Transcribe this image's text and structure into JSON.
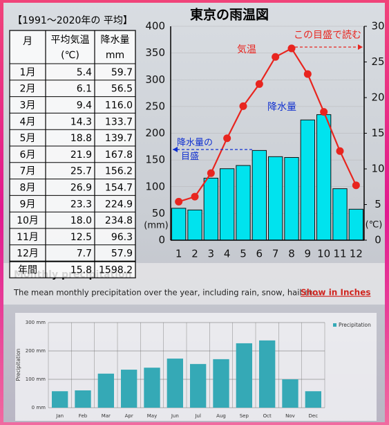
{
  "table": {
    "title": "【1991～2020年の 平均】",
    "header": [
      [
        "月"
      ],
      [
        "平均気温",
        "(℃)"
      ],
      [
        "降水量",
        "mm"
      ]
    ],
    "rows": [
      [
        "1月",
        "5.4",
        "59.7"
      ],
      [
        "2月",
        "6.1",
        "56.5"
      ],
      [
        "3月",
        "9.4",
        "116.0"
      ],
      [
        "4月",
        "14.3",
        "133.7"
      ],
      [
        "5月",
        "18.8",
        "139.7"
      ],
      [
        "6月",
        "21.9",
        "167.8"
      ],
      [
        "7月",
        "25.7",
        "156.2"
      ],
      [
        "8月",
        "26.9",
        "154.7"
      ],
      [
        "9月",
        "23.3",
        "224.9"
      ],
      [
        "10月",
        "18.0",
        "234.8"
      ],
      [
        "11月",
        "12.5",
        "96.3"
      ],
      [
        "12月",
        "7.7",
        "57.9"
      ],
      [
        "年間",
        "15.8",
        "1598.2"
      ]
    ]
  },
  "section": {
    "heading": "Monthly precipitation",
    "description": "The mean monthly precipitation over the year, including rain, snow, hail etc.",
    "link": "Show in Inches"
  },
  "chart_data": [
    {
      "type": "combo",
      "title": "東京の雨温図",
      "categories": [
        "1",
        "2",
        "3",
        "4",
        "5",
        "6",
        "7",
        "8",
        "9",
        "10",
        "11",
        "12"
      ],
      "series": [
        {
          "name": "降水量",
          "type": "bar",
          "color": "#00e3ee",
          "values": [
            59.7,
            56.5,
            116.0,
            133.7,
            139.7,
            167.8,
            156.2,
            154.7,
            224.9,
            234.8,
            96.3,
            57.9
          ]
        },
        {
          "name": "気温",
          "type": "line",
          "axis": "y2",
          "color": "#e8251f",
          "values": [
            5.4,
            6.1,
            9.4,
            14.3,
            18.8,
            21.9,
            25.7,
            26.9,
            23.3,
            18.0,
            12.5,
            7.7
          ]
        }
      ],
      "ylim": [
        0,
        400
      ],
      "yticks": [
        0,
        50,
        100,
        150,
        200,
        250,
        300,
        350,
        400
      ],
      "y2lim": [
        0,
        30
      ],
      "y2ticks": [
        0,
        5,
        10,
        15,
        20,
        25,
        30
      ],
      "y_unit": "(mm)",
      "y2_unit": "(℃)",
      "annotations": [
        "降水量の目盛",
        "この目盛で読む"
      ],
      "grid": true
    },
    {
      "type": "bar",
      "categories": [
        "Jan",
        "Feb",
        "Mar",
        "Apr",
        "May",
        "Jun",
        "Jul",
        "Aug",
        "Sep",
        "Oct",
        "Nov",
        "Dec"
      ],
      "series": [
        {
          "name": "Precipitation",
          "color": "#35a9b6",
          "values": [
            58,
            61,
            120,
            134,
            141,
            173,
            154,
            171,
            227,
            237,
            100,
            58
          ]
        }
      ],
      "ylim": [
        0,
        300
      ],
      "yticks": [
        {
          "value": 0,
          "label": "0 mm"
        },
        {
          "value": 100,
          "label": "100 mm"
        },
        {
          "value": 200,
          "label": "200 mm"
        },
        {
          "value": 300,
          "label": "300 mm"
        }
      ],
      "ylabel": "Precipitation",
      "grid": true,
      "legend": "top-right"
    }
  ]
}
